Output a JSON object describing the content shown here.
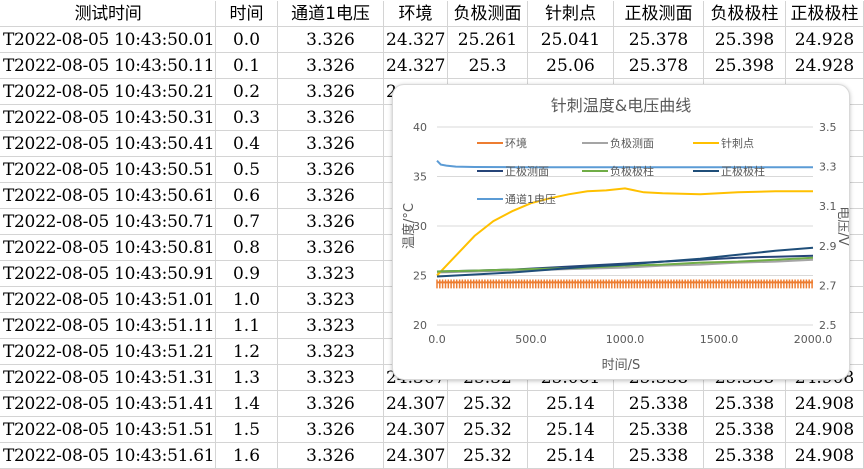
{
  "table": {
    "headers": [
      "测试时间",
      "时间",
      "通道1电压",
      "环境",
      "负极测面",
      "针刺点",
      "正极测面",
      "负极极柱",
      "正极极柱"
    ],
    "rows": [
      [
        "T2022-08-05 10:43:50.01",
        "0.0",
        "3.326",
        "24.327",
        "25.261",
        "25.041",
        "25.378",
        "25.398",
        "24.928"
      ],
      [
        "T2022-08-05 10:43:50.11",
        "0.1",
        "3.326",
        "24.327",
        "25.3",
        "25.06",
        "25.378",
        "25.398",
        "24.928"
      ],
      [
        "T2022-08-05 10:43:50.21",
        "0.2",
        "3.326",
        "24.327",
        "",
        "",
        "",
        "",
        ""
      ],
      [
        "T2022-08-05 10:43:50.31",
        "0.3",
        "3.326",
        "",
        "",
        "",
        "",
        "",
        ""
      ],
      [
        "T2022-08-05 10:43:50.41",
        "0.4",
        "3.326",
        "",
        "",
        "",
        "",
        "",
        ""
      ],
      [
        "T2022-08-05 10:43:50.51",
        "0.5",
        "3.326",
        "",
        "",
        "",
        "",
        "",
        ""
      ],
      [
        "T2022-08-05 10:43:50.61",
        "0.6",
        "3.326",
        "",
        "",
        "",
        "",
        "",
        ""
      ],
      [
        "T2022-08-05 10:43:50.71",
        "0.7",
        "3.326",
        "",
        "",
        "",
        "",
        "",
        ""
      ],
      [
        "T2022-08-05 10:43:50.81",
        "0.8",
        "3.326",
        "",
        "",
        "",
        "",
        "",
        ""
      ],
      [
        "T2022-08-05 10:43:50.91",
        "0.9",
        "3.323",
        "",
        "",
        "",
        "",
        "",
        ""
      ],
      [
        "T2022-08-05 10:43:51.01",
        "1.0",
        "3.323",
        "",
        "",
        "",
        "",
        "",
        ""
      ],
      [
        "T2022-08-05 10:43:51.11",
        "1.1",
        "3.323",
        "",
        "",
        "",
        "",
        "",
        ""
      ],
      [
        "T2022-08-05 10:43:51.21",
        "1.2",
        "3.323",
        "",
        "",
        "",
        "",
        "",
        ""
      ],
      [
        "T2022-08-05 10:43:51.31",
        "1.3",
        "3.323",
        "24.307",
        "25.32",
        "25.061",
        "25.338",
        "25.338",
        "24.908"
      ],
      [
        "T2022-08-05 10:43:51.41",
        "1.4",
        "3.326",
        "24.307",
        "25.32",
        "25.14",
        "25.338",
        "25.338",
        "24.908"
      ],
      [
        "T2022-08-05 10:43:51.51",
        "1.5",
        "3.326",
        "24.307",
        "25.32",
        "25.14",
        "25.338",
        "25.338",
        "24.908"
      ],
      [
        "T2022-08-05 10:43:51.61",
        "1.6",
        "3.326",
        "24.307",
        "25.32",
        "25.14",
        "25.338",
        "25.338",
        "24.908"
      ]
    ]
  },
  "chart_data": {
    "type": "line",
    "title": "针刺温度&电压曲线",
    "xlabel": "时间/S",
    "ylabel": "温度/°C",
    "y2label": "电压/V",
    "xlim": [
      0,
      2000
    ],
    "ylim": [
      20,
      40
    ],
    "y2lim": [
      2.5,
      3.5
    ],
    "xticks": [
      "0.0",
      "500.0",
      "1000.0",
      "1500.0",
      "2000.0"
    ],
    "yticks": [
      "20",
      "25",
      "30",
      "35",
      "40"
    ],
    "y2ticks": [
      "2.5",
      "2.7",
      "2.9",
      "3.1",
      "3.3",
      "3.5"
    ],
    "grid": true,
    "legend_position": "inside-left",
    "series": [
      {
        "name": "环境",
        "color": "#ED7D31",
        "axis": "left",
        "x": [
          0,
          200,
          400,
          600,
          800,
          1000,
          1200,
          1400,
          1600,
          1800,
          2000
        ],
        "y": [
          24.3,
          24.3,
          24.3,
          24.3,
          24.3,
          24.3,
          24.3,
          24.3,
          24.3,
          24.3,
          24.3
        ]
      },
      {
        "name": "负极测面",
        "color": "#A5A5A5",
        "axis": "left",
        "x": [
          0,
          200,
          400,
          600,
          800,
          1000,
          1200,
          1400,
          1600,
          1800,
          2000
        ],
        "y": [
          25.3,
          25.4,
          25.5,
          25.6,
          25.7,
          25.8,
          26.0,
          26.1,
          26.3,
          26.4,
          26.6
        ]
      },
      {
        "name": "针刺点",
        "color": "#FFC000",
        "axis": "left",
        "x": [
          0,
          50,
          100,
          200,
          300,
          400,
          500,
          600,
          700,
          800,
          900,
          1000,
          1100,
          1200,
          1400,
          1600,
          1800,
          2000
        ],
        "y": [
          25.0,
          26.0,
          27.0,
          29.0,
          30.5,
          31.5,
          32.3,
          32.8,
          33.2,
          33.5,
          33.6,
          33.8,
          33.4,
          33.3,
          33.2,
          33.4,
          33.5,
          33.5
        ]
      },
      {
        "name": "正极测面",
        "color": "#264478",
        "axis": "left",
        "x": [
          0,
          200,
          400,
          600,
          800,
          1000,
          1200,
          1400,
          1600,
          1800,
          2000
        ],
        "y": [
          25.4,
          25.5,
          25.6,
          25.8,
          26.0,
          26.2,
          26.4,
          26.6,
          26.8,
          26.9,
          27.0
        ]
      },
      {
        "name": "负极极柱",
        "color": "#70AD47",
        "axis": "left",
        "x": [
          0,
          200,
          400,
          600,
          800,
          1000,
          1200,
          1400,
          1600,
          1800,
          2000
        ],
        "y": [
          25.4,
          25.5,
          25.6,
          25.7,
          25.8,
          26.0,
          26.1,
          26.3,
          26.4,
          26.6,
          26.8
        ]
      },
      {
        "name": "正极极柱",
        "color": "#1F4E79",
        "axis": "left",
        "x": [
          0,
          200,
          400,
          600,
          800,
          1000,
          1200,
          1400,
          1600,
          1800,
          2000
        ],
        "y": [
          24.9,
          25.1,
          25.3,
          25.6,
          25.9,
          26.1,
          26.4,
          26.7,
          27.1,
          27.5,
          27.8
        ]
      },
      {
        "name": "通道1电压",
        "color": "#5B9BD5",
        "axis": "right",
        "x": [
          0,
          20,
          50,
          100,
          200,
          400,
          600,
          800,
          1000,
          1200,
          1400,
          1600,
          1800,
          2000
        ],
        "y": [
          3.33,
          3.31,
          3.305,
          3.3,
          3.298,
          3.297,
          3.297,
          3.297,
          3.297,
          3.297,
          3.297,
          3.297,
          3.297,
          3.297
        ]
      }
    ]
  }
}
